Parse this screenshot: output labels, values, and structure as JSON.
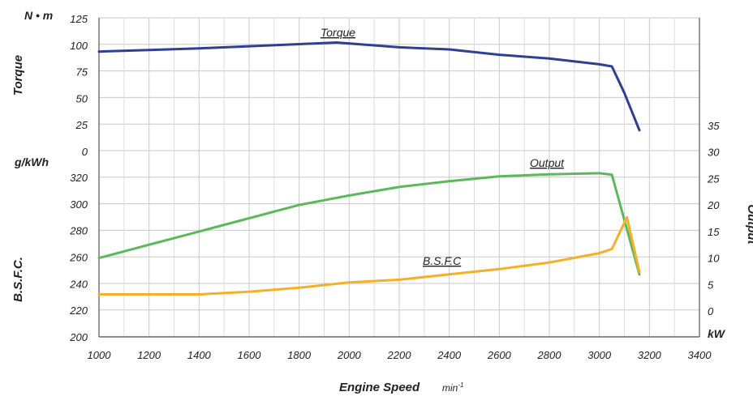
{
  "chart_data": {
    "type": "line",
    "xlabel": "Engine Speed",
    "xunit": "min",
    "xunit_sup": "-1",
    "xlim": [
      1000,
      3400
    ],
    "xticks": [
      "1000",
      "1200",
      "1400",
      "1600",
      "1800",
      "2000",
      "2200",
      "2400",
      "2600",
      "2800",
      "3000",
      "3200",
      "3400"
    ],
    "grid": true,
    "torque_axis": {
      "label": "Torque",
      "unit": "N • m",
      "range": [
        0,
        125
      ],
      "ticks": [
        "125",
        "100",
        "75",
        "50",
        "25",
        "0"
      ]
    },
    "bsfc_axis": {
      "label": "B.S.F.C.",
      "unit": "g/kWh",
      "range": [
        200,
        320
      ],
      "ticks": [
        "320",
        "300",
        "280",
        "260",
        "240",
        "220",
        "200"
      ]
    },
    "output_axis": {
      "label": "Output",
      "unit": "kW",
      "range": [
        0,
        35
      ],
      "ticks": [
        "35",
        "30",
        "25",
        "20",
        "15",
        "10",
        "5",
        "0"
      ]
    },
    "series": [
      {
        "name": "Torque",
        "axis": "torque",
        "color": "#2e3f94",
        "x": [
          1000,
          1200,
          1400,
          1600,
          1800,
          1950,
          2200,
          2400,
          2600,
          2800,
          3000,
          3050,
          3100,
          3160
        ],
        "y": [
          94,
          95.5,
          97,
          99,
          101,
          102.5,
          98,
          96,
          91,
          87.5,
          82,
          80,
          55,
          20
        ]
      },
      {
        "name": "Output",
        "axis": "output",
        "color": "#5cb85c",
        "x": [
          1000,
          1200,
          1400,
          1600,
          1800,
          2000,
          2200,
          2400,
          2600,
          2800,
          3000,
          3050,
          3160
        ],
        "y": [
          10,
          12.5,
          15,
          17.5,
          20,
          21.8,
          23.4,
          24.5,
          25.4,
          25.8,
          26,
          25.7,
          6.9
        ]
      },
      {
        "name": "B.S.F.C",
        "axis": "bsfc",
        "color": "#f5b027",
        "x": [
          1000,
          1200,
          1400,
          1600,
          1800,
          2000,
          2200,
          2400,
          2600,
          2800,
          3000,
          3050,
          3110,
          3160
        ],
        "y": [
          232,
          232,
          232,
          234,
          237,
          241,
          243,
          247,
          251,
          256,
          263,
          266,
          290,
          249
        ]
      }
    ]
  }
}
